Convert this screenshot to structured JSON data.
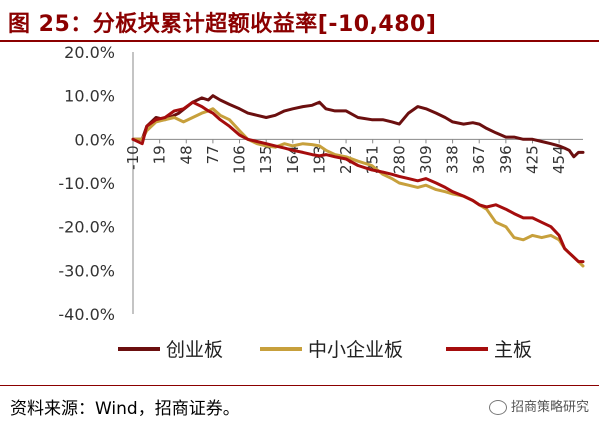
{
  "header": {
    "title": "图 25：分板块累计超额收益率[-10,480]"
  },
  "footer": {
    "source": "资料来源：Wind，招商证券。",
    "watermark": "招商策略研究",
    "watermark_icon": "wechat-icon"
  },
  "chart_data": {
    "type": "line",
    "title": "图 25：分板块累计超额收益率[-10,480]",
    "xlabel": "",
    "ylabel": "",
    "xlim": [
      -10,
      480
    ],
    "ylim": [
      -40,
      20
    ],
    "x_ticks": [
      "-10",
      "19",
      "48",
      "77",
      "106",
      "135",
      "164",
      "193",
      "222",
      "251",
      "280",
      "309",
      "338",
      "367",
      "396",
      "425",
      "454"
    ],
    "x_tick_values": [
      -10,
      19,
      48,
      77,
      106,
      135,
      164,
      193,
      222,
      251,
      280,
      309,
      338,
      367,
      396,
      425,
      454
    ],
    "y_ticks": [
      "20.0%",
      "10.0%",
      "0.0%",
      "-10.0%",
      "-20.0%",
      "-30.0%",
      "-40.0%"
    ],
    "y_tick_values": [
      20,
      10,
      0,
      -10,
      -20,
      -30,
      -40
    ],
    "grid": false,
    "legend_position": "bottom",
    "series": [
      {
        "name": "创业板",
        "color": "#6b0f0f",
        "x": [
          -10,
          0,
          5,
          15,
          25,
          40,
          55,
          65,
          72,
          77,
          85,
          95,
          106,
          115,
          125,
          135,
          145,
          155,
          164,
          175,
          185,
          193,
          200,
          210,
          222,
          235,
          250,
          262,
          272,
          280,
          290,
          300,
          309,
          320,
          330,
          338,
          350,
          360,
          367,
          375,
          385,
          396,
          405,
          415,
          425,
          435,
          445,
          454,
          460,
          465,
          470,
          475,
          480
        ],
        "y": [
          0,
          0,
          3,
          5,
          4.5,
          6,
          8.5,
          9.5,
          9,
          10,
          9,
          8,
          7,
          6,
          5.5,
          5,
          5.5,
          6.5,
          7,
          7.5,
          7.8,
          8.5,
          7,
          6.5,
          6.5,
          5,
          4.5,
          4.5,
          4,
          3.5,
          6,
          7.5,
          7,
          6,
          5,
          4,
          3.5,
          3.8,
          3.5,
          2.5,
          1.5,
          0.5,
          0.5,
          0,
          0,
          -0.5,
          -1,
          -1.5,
          -2,
          -2.5,
          -4,
          -3,
          -3
        ]
      },
      {
        "name": "中小企业板",
        "color": "#c7a03c",
        "x": [
          -10,
          0,
          5,
          15,
          25,
          35,
          45,
          55,
          65,
          72,
          77,
          85,
          95,
          106,
          115,
          125,
          135,
          145,
          155,
          164,
          175,
          185,
          193,
          200,
          210,
          222,
          235,
          250,
          262,
          272,
          280,
          290,
          300,
          309,
          320,
          330,
          338,
          350,
          360,
          367,
          375,
          385,
          396,
          405,
          415,
          425,
          435,
          445,
          454,
          460,
          465,
          470,
          475,
          480
        ],
        "y": [
          0,
          0,
          2,
          4,
          4.5,
          5,
          4,
          5,
          6,
          6.5,
          7,
          5.5,
          4.5,
          2,
          0,
          -1,
          -1.5,
          -1.8,
          -1,
          -1.5,
          -1,
          -1.2,
          -1.5,
          -2.5,
          -3.5,
          -4,
          -5,
          -6,
          -8,
          -9,
          -10,
          -10.5,
          -11,
          -10.5,
          -11.5,
          -12,
          -12.5,
          -13,
          -14,
          -15,
          -16,
          -19,
          -20,
          -22.5,
          -23,
          -22,
          -22.5,
          -22,
          -23,
          -25,
          -26,
          -27,
          -28,
          -29
        ]
      },
      {
        "name": "主板",
        "color": "#a50d0d",
        "x": [
          -10,
          0,
          5,
          15,
          25,
          35,
          45,
          55,
          65,
          72,
          77,
          85,
          95,
          106,
          115,
          125,
          135,
          145,
          155,
          164,
          175,
          185,
          193,
          200,
          210,
          222,
          235,
          250,
          262,
          272,
          280,
          290,
          300,
          309,
          320,
          330,
          338,
          350,
          360,
          367,
          375,
          385,
          396,
          405,
          415,
          425,
          435,
          445,
          454,
          460,
          465,
          470,
          475,
          480
        ],
        "y": [
          0,
          -1,
          3,
          4.5,
          5,
          6.5,
          7,
          8.5,
          7.5,
          6.5,
          6,
          4.5,
          3,
          1,
          0,
          -0.5,
          -1,
          -1.5,
          -2,
          -2.5,
          -3,
          -3.5,
          -3.8,
          -3.5,
          -4,
          -4.5,
          -6,
          -7,
          -7.5,
          -8,
          -8.5,
          -9,
          -9.5,
          -9,
          -10,
          -11,
          -12,
          -13,
          -14,
          -15,
          -15.5,
          -15,
          -16,
          -17,
          -18,
          -18,
          -19,
          -20,
          -22,
          -25,
          -26,
          -27,
          -28,
          -28
        ]
      }
    ]
  }
}
